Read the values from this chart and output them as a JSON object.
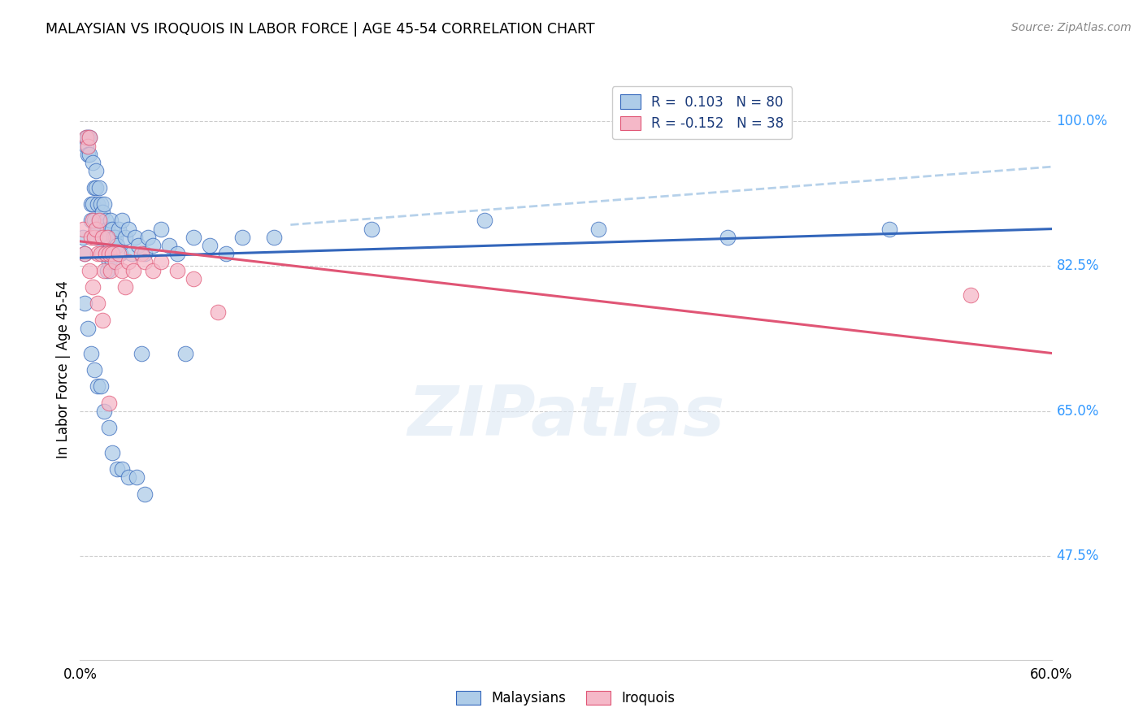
{
  "title": "MALAYSIAN VS IROQUOIS IN LABOR FORCE | AGE 45-54 CORRELATION CHART",
  "source": "Source: ZipAtlas.com",
  "ylabel": "In Labor Force | Age 45-54",
  "ytick_labels": [
    "100.0%",
    "82.5%",
    "65.0%",
    "47.5%"
  ],
  "ytick_values": [
    1.0,
    0.825,
    0.65,
    0.475
  ],
  "xlim": [
    0.0,
    0.6
  ],
  "ylim": [
    0.35,
    1.05
  ],
  "legend_r1": "R =  0.103",
  "legend_n1": "N = 80",
  "legend_r2": "R = -0.152",
  "legend_n2": "N = 38",
  "color_blue": "#AECCE8",
  "color_pink": "#F5B8C8",
  "line_color_blue": "#3366BB",
  "line_color_pink": "#E05575",
  "dashed_line_color": "#AECCE8",
  "watermark": "ZIPatlas",
  "malaysian_x": [
    0.002,
    0.003,
    0.004,
    0.004,
    0.005,
    0.005,
    0.006,
    0.006,
    0.007,
    0.007,
    0.008,
    0.008,
    0.009,
    0.009,
    0.01,
    0.01,
    0.01,
    0.011,
    0.011,
    0.012,
    0.012,
    0.013,
    0.013,
    0.014,
    0.014,
    0.015,
    0.015,
    0.016,
    0.016,
    0.017,
    0.017,
    0.018,
    0.018,
    0.019,
    0.019,
    0.02,
    0.02,
    0.021,
    0.022,
    0.023,
    0.024,
    0.025,
    0.026,
    0.028,
    0.03,
    0.032,
    0.034,
    0.036,
    0.038,
    0.04,
    0.042,
    0.045,
    0.05,
    0.055,
    0.06,
    0.065,
    0.07,
    0.08,
    0.09,
    0.1,
    0.003,
    0.005,
    0.007,
    0.009,
    0.011,
    0.013,
    0.015,
    0.018,
    0.02,
    0.023,
    0.026,
    0.03,
    0.035,
    0.04,
    0.12,
    0.18,
    0.25,
    0.32,
    0.4,
    0.5
  ],
  "malaysian_y": [
    0.86,
    0.84,
    0.98,
    0.97,
    0.98,
    0.96,
    0.96,
    0.98,
    0.88,
    0.9,
    0.9,
    0.95,
    0.92,
    0.88,
    0.94,
    0.92,
    0.86,
    0.9,
    0.87,
    0.92,
    0.88,
    0.86,
    0.9,
    0.89,
    0.84,
    0.9,
    0.86,
    0.88,
    0.84,
    0.87,
    0.82,
    0.86,
    0.83,
    0.88,
    0.85,
    0.87,
    0.83,
    0.86,
    0.86,
    0.85,
    0.87,
    0.84,
    0.88,
    0.86,
    0.87,
    0.84,
    0.86,
    0.85,
    0.72,
    0.84,
    0.86,
    0.85,
    0.87,
    0.85,
    0.84,
    0.72,
    0.86,
    0.85,
    0.84,
    0.86,
    0.78,
    0.75,
    0.72,
    0.7,
    0.68,
    0.68,
    0.65,
    0.63,
    0.6,
    0.58,
    0.58,
    0.57,
    0.57,
    0.55,
    0.86,
    0.87,
    0.88,
    0.87,
    0.86,
    0.87
  ],
  "iroquois_x": [
    0.002,
    0.004,
    0.005,
    0.006,
    0.007,
    0.008,
    0.009,
    0.01,
    0.011,
    0.012,
    0.013,
    0.014,
    0.015,
    0.016,
    0.017,
    0.018,
    0.019,
    0.02,
    0.022,
    0.024,
    0.026,
    0.028,
    0.03,
    0.033,
    0.038,
    0.04,
    0.045,
    0.05,
    0.06,
    0.07,
    0.003,
    0.006,
    0.008,
    0.011,
    0.014,
    0.018,
    0.085,
    0.55
  ],
  "iroquois_y": [
    0.87,
    0.98,
    0.97,
    0.98,
    0.86,
    0.88,
    0.86,
    0.87,
    0.84,
    0.88,
    0.84,
    0.86,
    0.82,
    0.84,
    0.86,
    0.84,
    0.82,
    0.84,
    0.83,
    0.84,
    0.82,
    0.8,
    0.83,
    0.82,
    0.84,
    0.83,
    0.82,
    0.83,
    0.82,
    0.81,
    0.84,
    0.82,
    0.8,
    0.78,
    0.76,
    0.66,
    0.77,
    0.79
  ],
  "blue_trend_x": [
    0.0,
    0.6
  ],
  "blue_trend_y": [
    0.835,
    0.87
  ],
  "pink_trend_x": [
    0.0,
    0.6
  ],
  "pink_trend_y": [
    0.855,
    0.72
  ],
  "dashed_trend_x": [
    0.13,
    0.6
  ],
  "dashed_trend_y": [
    0.875,
    0.945
  ]
}
